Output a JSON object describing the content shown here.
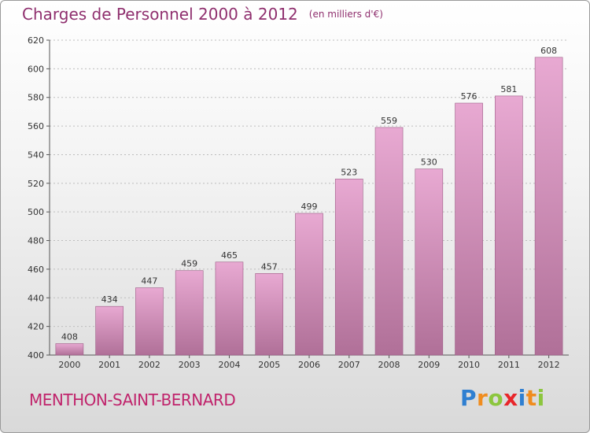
{
  "header": {
    "title": "Charges de Personnel 2000 à 2012",
    "unit": "(en milliers d'€)"
  },
  "footer": {
    "town": "MENTHON-SAINT-BERNARD",
    "logo": {
      "letters": [
        "P",
        "r",
        "o",
        "x",
        "i",
        "t",
        "i"
      ],
      "colors": [
        "#2f7fd1",
        "#f08c1e",
        "#8cc63e",
        "#e8262a",
        "#2f7fd1",
        "#f08c1e",
        "#8cc63e"
      ]
    }
  },
  "chart_data": {
    "type": "bar",
    "categories": [
      "2000",
      "2001",
      "2002",
      "2003",
      "2004",
      "2005",
      "2006",
      "2007",
      "2008",
      "2009",
      "2010",
      "2011",
      "2012"
    ],
    "values": [
      408,
      434,
      447,
      459,
      465,
      457,
      499,
      523,
      559,
      530,
      576,
      581,
      608
    ],
    "title": "Charges de Personnel 2000 à 2012",
    "subtitle": "(en milliers d'€)",
    "xlabel": "",
    "ylabel": "",
    "ylim": [
      400,
      620
    ],
    "yticks": [
      400,
      420,
      440,
      460,
      480,
      500,
      520,
      540,
      560,
      580,
      600,
      620
    ],
    "grid": true,
    "legend": "none",
    "colors": {
      "bar_top": "#e8a9d2",
      "bar_bottom": "#b07098",
      "bar_edge": "#9c5c86",
      "grid": "#bdbdbd"
    }
  }
}
